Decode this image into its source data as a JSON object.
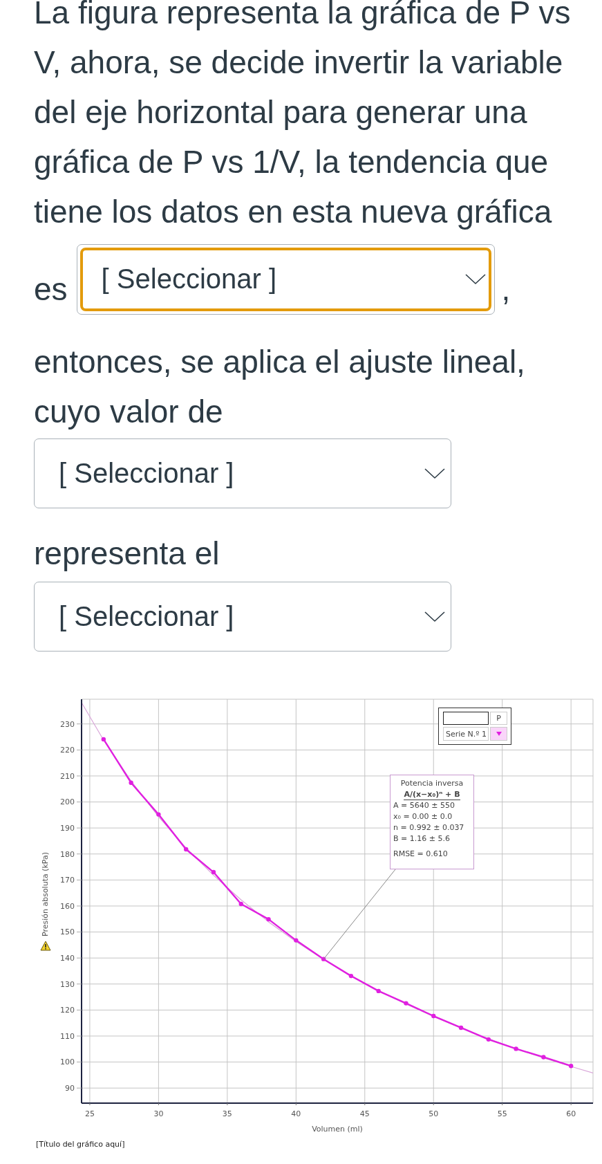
{
  "chart_data": {
    "type": "line",
    "title": "[Título del gráfico aquí]",
    "xlabel": "Volumen (ml)",
    "ylabel": "Presión absoluta (kPa)",
    "legend_title": "P",
    "annotations": [
      "La figura representa la gráfica de P vs V, ahora, se decide invertir la variable del eje horizontal para generar una gráfica de P vs 1/V, la tendencia que tiene los datos en esta nueva gráfica",
      "es",
      "[ Seleccionar ]",
      ",",
      "entonces, se aplica el ajuste lineal, cuyo valor de",
      "[ Seleccionar ]",
      "representa el",
      "[ Seleccionar ]",
      "Potencia inversa",
      "A/(x−x₀)ⁿ + B",
      "A = 5640 ± 550",
      "x₀ = 0.00 ± 0.0",
      "n = 0.992 ± 0.037",
      "B = 1.16 ± 5.6",
      "RMSE = 0.610"
    ],
    "series": [
      {
        "name": "Serie N.º 1",
        "color": "#e020e0",
        "marker": "circle",
        "x": [
          26,
          28,
          30,
          32,
          34,
          36,
          38,
          40,
          42,
          44,
          46,
          48,
          50,
          52,
          54,
          56,
          58,
          60
        ],
        "values": [
          224.1,
          207.4,
          195.2,
          181.8,
          173.0,
          160.8,
          154.9,
          146.8,
          139.6,
          133.1,
          127.3,
          122.6,
          117.7,
          113.2,
          108.7,
          105.1,
          101.9,
          98.5
        ]
      },
      {
        "type": "line",
        "color": "#d9a6d9",
        "marker": "none",
        "x": [
          24.4,
          26,
          28,
          30,
          32,
          34,
          36,
          38,
          40,
          42,
          44,
          46,
          48,
          50,
          52,
          54,
          56,
          58,
          60,
          61.6
        ],
        "values": [
          238.2,
          223.8,
          208.1,
          194.3,
          182.3,
          171.8,
          162.4,
          153.9,
          146.3,
          139.5,
          133.2,
          127.5,
          122.3,
          117.5,
          113.1,
          109.0,
          105.1,
          101.6,
          98.3,
          95.8
        ]
      }
    ],
    "xlim": [
      24.4,
      61.6
    ],
    "xticks": [
      25,
      30,
      35,
      40,
      45,
      50,
      55,
      60
    ],
    "ylim": [
      84.2,
      239.5
    ],
    "yticks": [
      90,
      100,
      110,
      120,
      130,
      140,
      150,
      160,
      170,
      180,
      190,
      200,
      210,
      220,
      230
    ],
    "grid": true,
    "legend": "top right"
  }
}
